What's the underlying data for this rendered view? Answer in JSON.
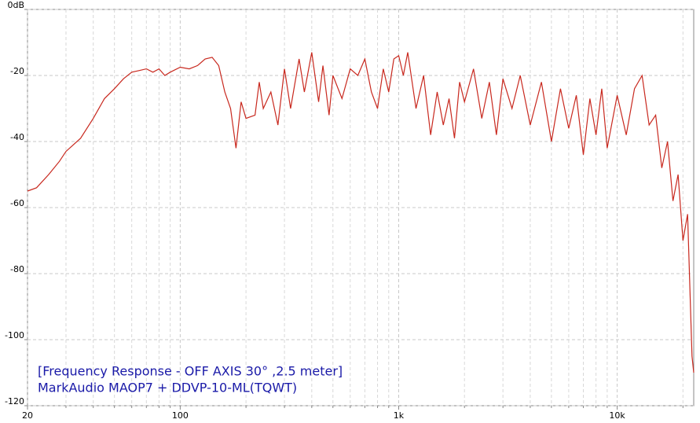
{
  "chart_data": {
    "type": "line",
    "log_x": true,
    "grid": true,
    "annotations": [
      "[Frequency Response - OFF AXIS 30°  ,2.5 meter]",
      "MarkAudio MAOP7 + DDVP-10-ML(TQWT)"
    ],
    "xlim": [
      20,
      22400
    ],
    "ylim": [
      -120,
      0
    ],
    "xticks": [
      20,
      100,
      {
        "value": 1000,
        "label": "1k"
      },
      {
        "value": 10000,
        "label": "10k"
      }
    ],
    "xminorticks": [
      30,
      40,
      50,
      60,
      70,
      80,
      90,
      200,
      300,
      400,
      500,
      600,
      700,
      800,
      900,
      2000,
      3000,
      4000,
      5000,
      6000,
      7000,
      8000,
      9000,
      20000
    ],
    "yticks": [
      {
        "value": 0,
        "label": "0dB"
      },
      -20,
      -40,
      -60,
      -80,
      -100,
      -120
    ],
    "x": [
      20,
      22,
      25,
      28,
      30,
      35,
      40,
      45,
      50,
      55,
      60,
      65,
      70,
      75,
      80,
      85,
      90,
      100,
      110,
      120,
      130,
      140,
      150,
      160,
      170,
      180,
      190,
      200,
      220,
      230,
      240,
      260,
      280,
      300,
      320,
      350,
      370,
      400,
      430,
      450,
      480,
      500,
      550,
      600,
      650,
      700,
      750,
      800,
      850,
      900,
      950,
      1000,
      1050,
      1100,
      1200,
      1300,
      1400,
      1500,
      1600,
      1700,
      1800,
      1900,
      2000,
      2200,
      2400,
      2600,
      2800,
      3000,
      3300,
      3600,
      4000,
      4500,
      5000,
      5500,
      6000,
      6500,
      7000,
      7500,
      8000,
      8500,
      9000,
      10000,
      11000,
      12000,
      13000,
      14000,
      15000,
      16000,
      17000,
      18000,
      19000,
      20000,
      21000,
      22000,
      22400
    ],
    "series": [
      {
        "name": "response",
        "color": "#c8281e",
        "values": [
          -55,
          -54,
          -50,
          -46,
          -43,
          -39,
          -33,
          -27,
          -24,
          -21,
          -19,
          -18.5,
          -18,
          -19,
          -18,
          -20,
          -19,
          -17.5,
          -18,
          -17,
          -15,
          -14.5,
          -17,
          -25,
          -30,
          -42,
          -28,
          -33,
          -32,
          -22,
          -30,
          -25,
          -35,
          -18,
          -30,
          -15,
          -25,
          -13,
          -28,
          -17,
          -32,
          -20,
          -27,
          -18,
          -20,
          -15,
          -25,
          -30,
          -18,
          -25,
          -15,
          -14,
          -20,
          -13,
          -30,
          -20,
          -38,
          -25,
          -35,
          -27,
          -39,
          -22,
          -28,
          -18,
          -33,
          -22,
          -38,
          -21,
          -30,
          -20,
          -35,
          -22,
          -40,
          -24,
          -36,
          -26,
          -44,
          -27,
          -38,
          -24,
          -42,
          -26,
          -38,
          -24,
          -20,
          -35,
          -32,
          -48,
          -40,
          -58,
          -50,
          -70,
          -62,
          -105,
          -110
        ]
      }
    ]
  }
}
